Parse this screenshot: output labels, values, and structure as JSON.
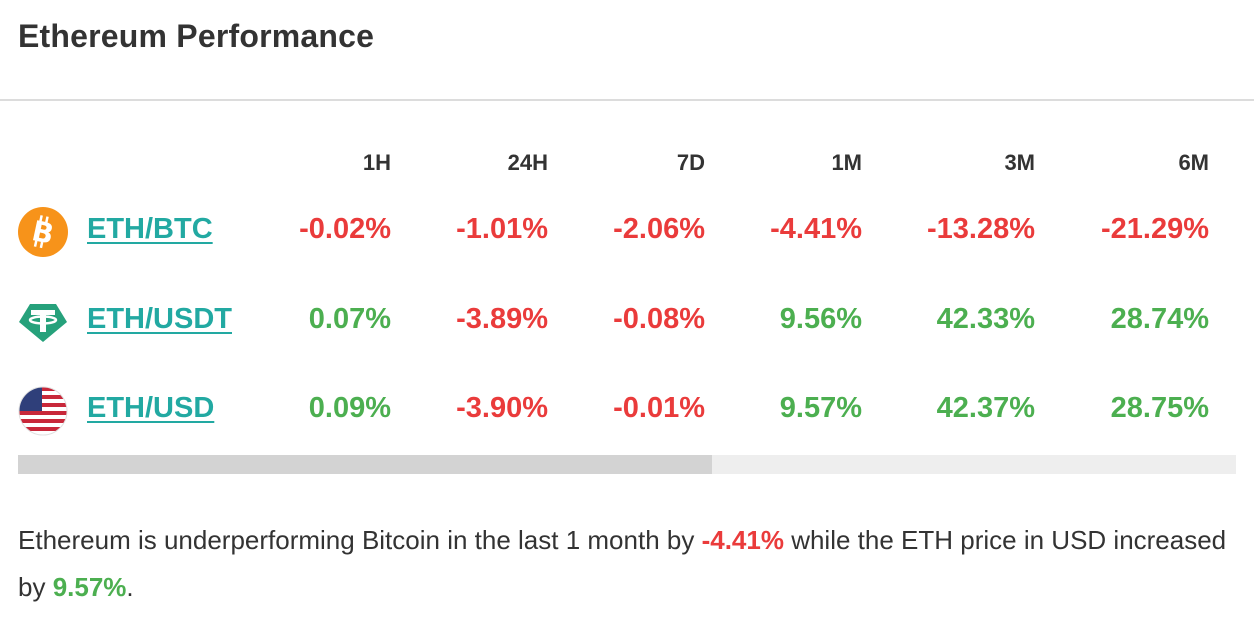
{
  "title": "Ethereum Performance",
  "columns": [
    "1H",
    "24H",
    "7D",
    "1M",
    "3M",
    "6M"
  ],
  "rows": [
    {
      "icon": "bitcoin-icon",
      "pair": "ETH/BTC",
      "values": [
        "-0.02%",
        "-1.01%",
        "-2.06%",
        "-4.41%",
        "-13.28%",
        "-21.29%"
      ]
    },
    {
      "icon": "tether-icon",
      "pair": "ETH/USDT",
      "values": [
        "0.07%",
        "-3.89%",
        "-0.08%",
        "9.56%",
        "42.33%",
        "28.74%"
      ]
    },
    {
      "icon": "us-flag-icon",
      "pair": "ETH/USD",
      "values": [
        "0.09%",
        "-3.90%",
        "-0.01%",
        "9.57%",
        "42.37%",
        "28.75%"
      ]
    }
  ],
  "scrollbar": {
    "thumb_fraction": 0.57
  },
  "summary": {
    "part1": "Ethereum is underperforming Bitcoin in the last 1 month by ",
    "value1": "-4.41%",
    "part2": " while the ETH price in USD increased by ",
    "value2": "9.57%",
    "part3": "."
  },
  "colors": {
    "negative": "#ea3b3b",
    "positive": "#4caf50",
    "link": "#22a9a2",
    "bitcoin": "#f7931a",
    "tether": "#26a17b"
  }
}
